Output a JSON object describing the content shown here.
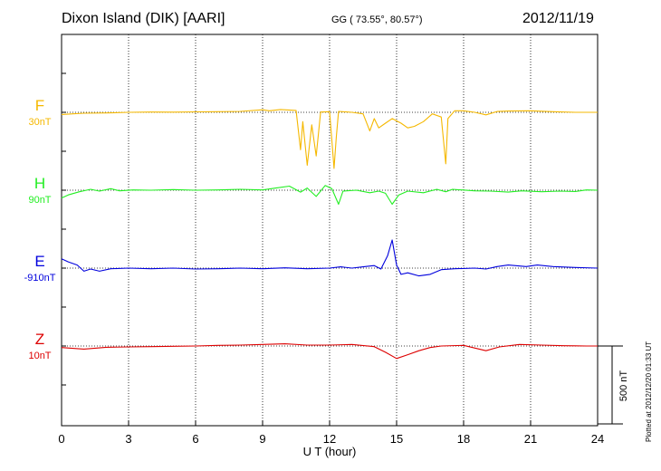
{
  "header": {
    "site": "Dixon Island (DIK)  [AARI]",
    "coords": "GG ( 73.55°,  80.57°)",
    "date": "2012/11/19"
  },
  "footer": {
    "plotted": "Plotted at 2012/12/20 01:33 UT"
  },
  "chart_data": {
    "type": "line",
    "xlabel": "U T (hour)",
    "xlim": [
      0,
      24
    ],
    "xticks": [
      0,
      3,
      6,
      9,
      12,
      15,
      18,
      21,
      24
    ],
    "grid": true,
    "scale_bar": {
      "label": "500 nT",
      "value": 500
    },
    "series": [
      {
        "name": "F",
        "offset_label": "30nT",
        "color": "#f5b800",
        "points": [
          [
            0,
            -14
          ],
          [
            0.5,
            -10
          ],
          [
            1,
            -6
          ],
          [
            2,
            -4
          ],
          [
            3,
            0
          ],
          [
            4,
            2
          ],
          [
            5,
            1
          ],
          [
            6,
            3
          ],
          [
            7,
            4
          ],
          [
            8,
            6
          ],
          [
            9,
            16
          ],
          [
            9.3,
            10
          ],
          [
            9.8,
            18
          ],
          [
            10.5,
            12
          ],
          [
            10.7,
            -240
          ],
          [
            10.8,
            -60
          ],
          [
            11.0,
            -340
          ],
          [
            11.2,
            -80
          ],
          [
            11.4,
            -280
          ],
          [
            11.6,
            2
          ],
          [
            12.0,
            4
          ],
          [
            12.1,
            -180
          ],
          [
            12.2,
            -360
          ],
          [
            12.3,
            -160
          ],
          [
            12.4,
            6
          ],
          [
            13.0,
            0
          ],
          [
            13.5,
            -10
          ],
          [
            13.8,
            -120
          ],
          [
            14.0,
            -40
          ],
          [
            14.2,
            -100
          ],
          [
            14.5,
            -70
          ],
          [
            14.8,
            -40
          ],
          [
            15.2,
            -70
          ],
          [
            15.5,
            -100
          ],
          [
            15.8,
            -90
          ],
          [
            16.2,
            -60
          ],
          [
            16.6,
            -10
          ],
          [
            17.0,
            -30
          ],
          [
            17.2,
            -330
          ],
          [
            17.3,
            -40
          ],
          [
            17.6,
            10
          ],
          [
            18.0,
            10
          ],
          [
            18.5,
            0
          ],
          [
            19.0,
            -16
          ],
          [
            19.5,
            5
          ],
          [
            20,
            8
          ],
          [
            21,
            10
          ],
          [
            22,
            4
          ],
          [
            23,
            0
          ],
          [
            24,
            0
          ]
        ]
      },
      {
        "name": "H",
        "offset_label": "90nT",
        "color": "#22ee22",
        "points": [
          [
            0,
            -50
          ],
          [
            0.3,
            -30
          ],
          [
            0.8,
            -10
          ],
          [
            1.3,
            6
          ],
          [
            1.7,
            -6
          ],
          [
            2.2,
            10
          ],
          [
            2.6,
            -4
          ],
          [
            3.2,
            2
          ],
          [
            4,
            0
          ],
          [
            5,
            4
          ],
          [
            6,
            0
          ],
          [
            7,
            2
          ],
          [
            8,
            6
          ],
          [
            9,
            2
          ],
          [
            9.6,
            14
          ],
          [
            10.2,
            26
          ],
          [
            10.7,
            -12
          ],
          [
            11.0,
            14
          ],
          [
            11.4,
            -40
          ],
          [
            11.8,
            30
          ],
          [
            12.1,
            10
          ],
          [
            12.4,
            -90
          ],
          [
            12.6,
            -6
          ],
          [
            13.2,
            0
          ],
          [
            13.8,
            -16
          ],
          [
            14.2,
            -6
          ],
          [
            14.5,
            -20
          ],
          [
            14.8,
            -90
          ],
          [
            15.1,
            -30
          ],
          [
            15.5,
            -6
          ],
          [
            16.2,
            -16
          ],
          [
            16.8,
            6
          ],
          [
            17.2,
            -10
          ],
          [
            17.5,
            6
          ],
          [
            18.5,
            -4
          ],
          [
            19.2,
            -6
          ],
          [
            20,
            -12
          ],
          [
            20.6,
            -4
          ],
          [
            21.5,
            -10
          ],
          [
            22.3,
            -6
          ],
          [
            23,
            -8
          ],
          [
            23.5,
            2
          ],
          [
            24,
            0
          ]
        ]
      },
      {
        "name": "E",
        "offset_label": "-910nT",
        "color": "#0000dd",
        "points": [
          [
            0,
            60
          ],
          [
            0.3,
            40
          ],
          [
            0.7,
            20
          ],
          [
            1.0,
            -20
          ],
          [
            1.3,
            -6
          ],
          [
            1.7,
            -20
          ],
          [
            2.2,
            -4
          ],
          [
            3,
            0
          ],
          [
            4,
            -4
          ],
          [
            5,
            0
          ],
          [
            6,
            -6
          ],
          [
            7,
            -4
          ],
          [
            8,
            0
          ],
          [
            9,
            -4
          ],
          [
            10,
            2
          ],
          [
            11,
            -4
          ],
          [
            12,
            0
          ],
          [
            12.5,
            8
          ],
          [
            13,
            0
          ],
          [
            13.5,
            8
          ],
          [
            14,
            16
          ],
          [
            14.3,
            -6
          ],
          [
            14.6,
            80
          ],
          [
            14.8,
            180
          ],
          [
            15.0,
            20
          ],
          [
            15.2,
            -40
          ],
          [
            15.5,
            -30
          ],
          [
            16.0,
            -50
          ],
          [
            16.5,
            -40
          ],
          [
            17.0,
            -10
          ],
          [
            17.6,
            -4
          ],
          [
            18.5,
            0
          ],
          [
            19.0,
            -6
          ],
          [
            19.5,
            10
          ],
          [
            20,
            20
          ],
          [
            20.8,
            10
          ],
          [
            21.3,
            20
          ],
          [
            22,
            10
          ],
          [
            23,
            4
          ],
          [
            24,
            0
          ]
        ]
      },
      {
        "name": "Z",
        "offset_label": "10nT",
        "color": "#dd0000",
        "points": [
          [
            0,
            -10
          ],
          [
            1,
            -20
          ],
          [
            2,
            -8
          ],
          [
            3,
            -6
          ],
          [
            4,
            -4
          ],
          [
            5,
            -2
          ],
          [
            6,
            0
          ],
          [
            7,
            4
          ],
          [
            8,
            6
          ],
          [
            9,
            10
          ],
          [
            10,
            14
          ],
          [
            11,
            6
          ],
          [
            12,
            6
          ],
          [
            13,
            10
          ],
          [
            14,
            -4
          ],
          [
            14.5,
            -40
          ],
          [
            15.0,
            -80
          ],
          [
            15.5,
            -56
          ],
          [
            16.0,
            -30
          ],
          [
            16.5,
            -10
          ],
          [
            17.0,
            0
          ],
          [
            18.0,
            4
          ],
          [
            19.0,
            -30
          ],
          [
            19.6,
            -6
          ],
          [
            20.5,
            10
          ],
          [
            21.5,
            6
          ],
          [
            22.5,
            2
          ],
          [
            23.5,
            0
          ],
          [
            24,
            0
          ]
        ]
      }
    ]
  }
}
